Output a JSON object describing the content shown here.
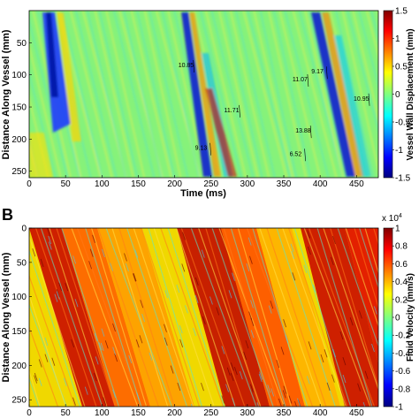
{
  "chart_data": [
    {
      "type": "heatmap",
      "panel_label": "",
      "xlabel": "Time (ms)",
      "ylabel": "Distance Along Vessel (mm)",
      "colorbar_label": "Vessel Wall Displacement (mm)",
      "xlim": [
        0,
        480
      ],
      "ylim": [
        0,
        260
      ],
      "y_inverted": true,
      "xticks": [
        0,
        50,
        100,
        150,
        200,
        250,
        300,
        350,
        400,
        450
      ],
      "yticks": [
        50,
        100,
        150,
        200,
        250
      ],
      "colorbar_range": [
        -1.5,
        1.5
      ],
      "colorbar_ticks": [
        "1.5",
        "1",
        "0.5",
        "0",
        "-0.5",
        "-1",
        "-1.5"
      ],
      "colorbar_tick_values": [
        1.5,
        1,
        0.5,
        0,
        -0.5,
        -1,
        -1.5
      ],
      "annotations": [
        {
          "text": "10.85",
          "x": 205,
          "y": 88
        },
        {
          "text": "11.07",
          "x": 362,
          "y": 110
        },
        {
          "text": "9.17",
          "x": 388,
          "y": 98
        },
        {
          "text": "11.71",
          "x": 268,
          "y": 158
        },
        {
          "text": "10.95",
          "x": 446,
          "y": 140
        },
        {
          "text": "13.88",
          "x": 366,
          "y": 190
        },
        {
          "text": "9.13",
          "x": 228,
          "y": 217
        },
        {
          "text": "6.52",
          "x": 358,
          "y": 226
        }
      ]
    },
    {
      "type": "heatmap",
      "panel_label": "B",
      "xlabel": "",
      "ylabel": "Distance Along Vessel (mm)",
      "colorbar_label": "Fluid Velocity (mm/s)",
      "colorbar_multiplier": "x 10",
      "colorbar_exponent": "4",
      "xlim": [
        0,
        480
      ],
      "ylim": [
        0,
        260
      ],
      "y_inverted": true,
      "xticks": [
        0,
        50,
        100,
        150,
        200,
        250,
        300,
        350,
        400,
        450
      ],
      "yticks": [
        0,
        50,
        100,
        150,
        200,
        250
      ],
      "colorbar_range": [
        -1,
        1
      ],
      "colorbar_ticks": [
        "1",
        "0.8",
        "0.6",
        "0.4",
        "0.2",
        "0",
        "-0.2",
        "-0.4",
        "-0.6",
        "-0.8",
        "-1"
      ],
      "colorbar_tick_values": [
        1,
        0.8,
        0.6,
        0.4,
        0.2,
        0,
        -0.2,
        -0.4,
        -0.6,
        -0.8,
        -1
      ]
    }
  ]
}
